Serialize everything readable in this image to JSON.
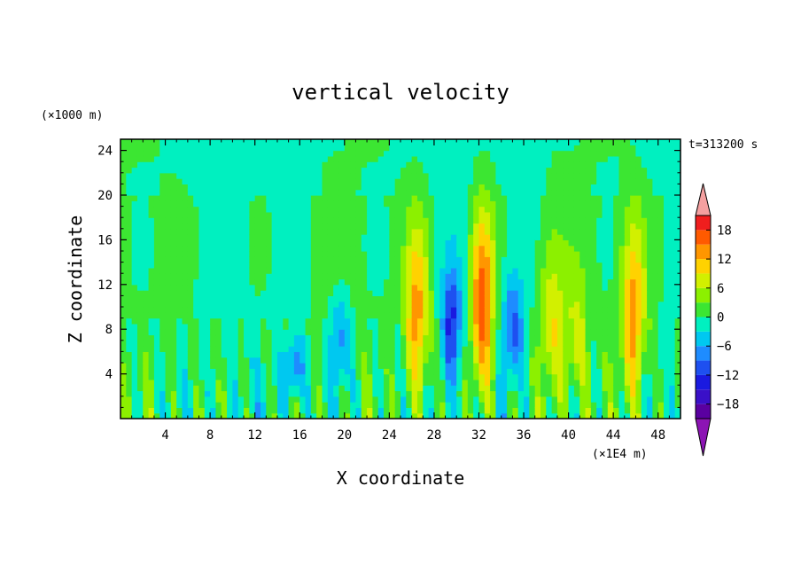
{
  "chart_data": {
    "type": "heatmap",
    "title": "vertical velocity",
    "xlabel": "X coordinate",
    "ylabel": "Z coordinate",
    "x_unit": "(×1E4 m)",
    "y_unit": "(×1000 m)",
    "time_label": "t=313200 s",
    "xlim": [
      0,
      50
    ],
    "ylim": [
      0,
      25
    ],
    "x_ticks": [
      4,
      8,
      12,
      16,
      20,
      24,
      28,
      32,
      36,
      40,
      44,
      48
    ],
    "y_ticks": [
      4,
      8,
      12,
      16,
      20,
      24
    ],
    "x_tick_labels": [
      "4",
      "8",
      "12",
      "16",
      "20",
      "24",
      "28",
      "32",
      "36",
      "40",
      "44",
      "48"
    ],
    "y_tick_labels": [
      "4",
      "8",
      "12",
      "16",
      "20",
      "24"
    ],
    "colorbar": {
      "levels": [
        -21,
        -18,
        -15,
        -12,
        -9,
        -6,
        -3,
        0,
        3,
        6,
        9,
        12,
        15,
        18,
        21
      ],
      "colors": [
        "#5a00a0",
        "#3a10c8",
        "#1a1ae0",
        "#1e50f0",
        "#1e8cff",
        "#00c8f0",
        "#00f0c0",
        "#3ce632",
        "#8cf000",
        "#d2f000",
        "#ffd200",
        "#ff9600",
        "#ff5a00",
        "#f01e1e"
      ],
      "over_color": "#f4a0a0",
      "under_color": "#8c14b4",
      "tick_values": [
        18,
        12,
        6,
        0,
        -6,
        -12,
        -18
      ],
      "tick_labels": [
        "18",
        "12",
        "6",
        "0",
        "−6",
        "−12",
        "−18"
      ]
    },
    "features": {
      "updrafts": [
        {
          "x": 26.5,
          "z_top": 21,
          "peak": 13
        },
        {
          "x": 32.3,
          "z_top": 23,
          "peak": 17
        },
        {
          "x": 38.5,
          "z_top": 19,
          "peak": 8
        },
        {
          "x": 45.8,
          "z_top": 21.5,
          "peak": 13
        },
        {
          "x": 40.7,
          "z_top": 16,
          "peak": 6
        }
      ],
      "downdrafts": [
        {
          "x": 29.6,
          "z_top": 17,
          "peak": -12
        },
        {
          "x": 35.0,
          "z_top": 16,
          "peak": -10
        },
        {
          "x": 19.6,
          "z_top": 14,
          "peak": -8
        },
        {
          "x": 15.5,
          "z_top": 9,
          "peak": -9
        }
      ]
    }
  }
}
